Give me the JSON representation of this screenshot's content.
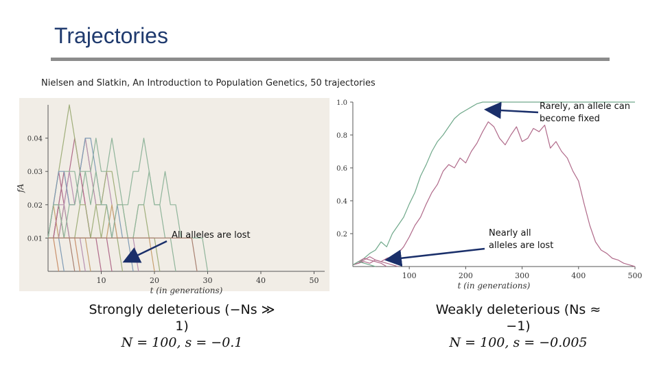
{
  "slide": {
    "title": "Trajectories",
    "citation": "Nielsen and Slatkin, An Introduction to Population Genetics, 50 trajectories"
  },
  "annotations": {
    "left_lost": "All alleles are lost",
    "right_fixed": "Rarely, an allele can become fixed",
    "right_lost": "Nearly all alleles are lost"
  },
  "captions": {
    "left_line1": "Strongly deleterious (−Ns ≫ 1)",
    "left_line2": "N = 100, s = −0.1",
    "right_line1": "Weakly deleterious (Ns ≈ −1)",
    "right_line2": "N = 100, s = −0.005"
  },
  "colors": {
    "title": "#1f3a6e",
    "rule": "#8c8c8c",
    "paper": "#f1ede6",
    "trajectory_pink": "#b06a8a",
    "trajectory_green": "#6fa88a",
    "arrow": "#1a2f6a"
  },
  "chart_data": [
    {
      "type": "line",
      "title": "",
      "xlabel": "t (in generations)",
      "ylabel": "fA",
      "xlim": [
        0,
        52
      ],
      "ylim": [
        0,
        0.05
      ],
      "xticks": [
        10,
        20,
        30,
        40,
        50
      ],
      "yticks": [
        0.01,
        0.02,
        0.03,
        0.04
      ],
      "xtick_labels": [
        "10",
        "20",
        "30",
        "40",
        "50"
      ],
      "ytick_labels": [
        "0.01",
        "0.02",
        "0.03",
        "0.04"
      ],
      "series": [
        {
          "x": [
            0,
            1,
            2,
            3,
            4,
            5,
            6,
            7,
            8,
            9,
            10
          ],
          "y": [
            0.01,
            0.02,
            0.03,
            0.02,
            0.03,
            0.04,
            0.03,
            0.02,
            0.01,
            0.01,
            0
          ]
        },
        {
          "x": [
            0,
            1,
            2,
            3,
            4,
            5,
            6
          ],
          "y": [
            0.01,
            0.01,
            0.02,
            0.01,
            0.01,
            0.01,
            0
          ]
        },
        {
          "x": [
            0,
            1,
            2,
            3,
            4,
            5,
            6,
            7,
            8,
            9,
            10,
            11,
            12,
            13,
            14
          ],
          "y": [
            0.01,
            0.02,
            0.03,
            0.04,
            0.05,
            0.04,
            0.03,
            0.04,
            0.03,
            0.02,
            0.01,
            0.02,
            0.01,
            0.01,
            0
          ]
        },
        {
          "x": [
            0,
            1,
            2,
            3
          ],
          "y": [
            0.01,
            0.01,
            0.01,
            0
          ]
        },
        {
          "x": [
            0,
            1,
            2,
            3,
            4,
            5,
            6,
            7,
            8,
            9,
            10,
            11,
            12,
            13,
            14,
            15,
            16,
            17
          ],
          "y": [
            0.01,
            0.01,
            0.02,
            0.02,
            0.03,
            0.02,
            0.03,
            0.04,
            0.03,
            0.02,
            0.02,
            0.03,
            0.02,
            0.01,
            0.01,
            0.01,
            0.01,
            0
          ]
        },
        {
          "x": [
            0,
            1,
            2,
            3,
            4,
            5,
            6,
            7,
            8
          ],
          "y": [
            0.01,
            0.02,
            0.01,
            0.02,
            0.01,
            0.01,
            0.01,
            0.01,
            0
          ]
        },
        {
          "x": [
            0,
            1,
            2,
            3,
            4,
            5,
            6,
            7,
            8,
            9,
            10,
            11,
            12,
            13,
            14,
            15,
            16,
            17,
            18,
            19,
            20,
            21,
            22,
            23,
            24
          ],
          "y": [
            0.01,
            0.02,
            0.02,
            0.03,
            0.03,
            0.03,
            0.02,
            0.03,
            0.03,
            0.04,
            0.03,
            0.03,
            0.04,
            0.03,
            0.02,
            0.02,
            0.03,
            0.03,
            0.04,
            0.03,
            0.02,
            0.02,
            0.01,
            0.01,
            0
          ]
        },
        {
          "x": [
            0,
            1,
            2,
            3,
            4,
            5
          ],
          "y": [
            0.01,
            0.01,
            0.02,
            0.01,
            0.01,
            0
          ]
        },
        {
          "x": [
            0,
            1,
            2,
            3,
            4,
            5,
            6,
            7,
            8,
            9,
            10,
            11,
            12
          ],
          "y": [
            0.01,
            0.01,
            0.02,
            0.03,
            0.02,
            0.02,
            0.03,
            0.02,
            0.01,
            0.01,
            0.01,
            0.01,
            0
          ]
        },
        {
          "x": [
            0,
            1,
            2
          ],
          "y": [
            0.01,
            0.01,
            0
          ]
        },
        {
          "x": [
            0,
            1,
            2,
            3,
            4,
            5,
            6,
            7,
            8,
            9,
            10,
            11,
            12,
            13,
            14,
            15,
            16,
            17,
            18,
            19,
            20,
            21
          ],
          "y": [
            0.01,
            0.01,
            0.01,
            0.02,
            0.01,
            0.01,
            0.02,
            0.02,
            0.01,
            0.02,
            0.02,
            0.03,
            0.03,
            0.02,
            0.02,
            0.01,
            0.01,
            0.02,
            0.02,
            0.01,
            0.01,
            0
          ]
        },
        {
          "x": [
            0,
            1,
            2,
            3,
            4,
            5,
            6,
            7,
            8,
            9,
            10,
            11,
            12,
            13,
            14,
            15,
            16
          ],
          "y": [
            0.01,
            0.02,
            0.03,
            0.03,
            0.02,
            0.02,
            0.03,
            0.04,
            0.04,
            0.03,
            0.02,
            0.02,
            0.01,
            0.02,
            0.01,
            0.01,
            0
          ]
        },
        {
          "x": [
            0,
            1,
            2,
            3,
            4,
            5,
            6,
            7
          ],
          "y": [
            0.01,
            0.01,
            0.01,
            0.02,
            0.01,
            0.01,
            0.01,
            0
          ]
        },
        {
          "x": [
            0,
            1,
            2,
            3,
            4,
            5,
            6,
            7,
            8,
            9,
            10,
            11,
            12,
            13,
            14,
            15,
            16,
            17,
            18,
            19,
            20
          ],
          "y": [
            0.01,
            0.01,
            0.01,
            0.01,
            0.01,
            0.01,
            0.01,
            0.01,
            0.01,
            0.01,
            0.01,
            0.01,
            0.02,
            0.01,
            0.01,
            0.01,
            0.01,
            0.01,
            0.01,
            0.01,
            0
          ]
        },
        {
          "x": [
            0,
            1,
            2,
            3,
            4,
            5,
            6,
            7,
            8,
            9,
            10,
            11,
            12,
            13,
            14,
            15,
            16,
            17,
            18,
            19,
            20,
            21,
            22,
            23,
            24,
            25,
            26,
            27,
            28,
            29,
            30
          ],
          "y": [
            0.01,
            0.02,
            0.02,
            0.01,
            0.02,
            0.02,
            0.03,
            0.03,
            0.02,
            0.03,
            0.02,
            0.02,
            0.01,
            0.02,
            0.02,
            0.01,
            0.01,
            0.02,
            0.02,
            0.03,
            0.02,
            0.02,
            0.03,
            0.02,
            0.02,
            0.01,
            0.01,
            0.01,
            0.01,
            0.01,
            0
          ]
        },
        {
          "x": [
            0,
            1,
            2,
            3,
            4,
            5,
            6,
            7,
            8,
            9,
            10,
            11,
            12,
            13,
            14,
            15,
            16,
            17,
            18,
            19,
            20,
            21,
            22,
            23,
            24,
            25,
            26,
            27,
            28
          ],
          "y": [
            0.01,
            0.01,
            0.01,
            0.01,
            0.01,
            0.01,
            0.01,
            0.01,
            0.01,
            0.01,
            0.01,
            0.01,
            0.01,
            0.01,
            0.01,
            0.01,
            0.01,
            0.01,
            0.01,
            0.01,
            0.01,
            0.01,
            0.01,
            0.01,
            0.01,
            0.01,
            0.01,
            0.01,
            0
          ]
        }
      ]
    },
    {
      "type": "line",
      "title": "",
      "xlabel": "t (in generations)",
      "ylabel": "",
      "xlim": [
        0,
        500
      ],
      "ylim": [
        0,
        1.0
      ],
      "xticks": [
        100,
        200,
        300,
        400,
        500
      ],
      "yticks": [
        0.2,
        0.4,
        0.6,
        0.8,
        1.0
      ],
      "xtick_labels": [
        "100",
        "200",
        "300",
        "400",
        "500"
      ],
      "ytick_labels": [
        "0.2",
        "0.4",
        "0.6",
        "0.8",
        "1.0"
      ],
      "series": [
        {
          "color": "green",
          "x": [
            0,
            10,
            20,
            30,
            40,
            50,
            60,
            70,
            80,
            90,
            100,
            110,
            120,
            130,
            140,
            150,
            160,
            170,
            180,
            190,
            200,
            210,
            220,
            230,
            240,
            250,
            260,
            270,
            280,
            290,
            300,
            310,
            320,
            330,
            340,
            350,
            360,
            370,
            380,
            390,
            400,
            410,
            420,
            430,
            440,
            450,
            460,
            470,
            480,
            490,
            500
          ],
          "y": [
            0.01,
            0.02,
            0.05,
            0.08,
            0.1,
            0.15,
            0.12,
            0.2,
            0.25,
            0.3,
            0.38,
            0.45,
            0.55,
            0.62,
            0.7,
            0.76,
            0.8,
            0.85,
            0.9,
            0.93,
            0.95,
            0.97,
            0.99,
            1,
            1,
            1,
            1,
            1,
            1,
            1,
            1,
            1,
            1,
            1,
            1,
            1,
            1,
            1,
            1,
            1,
            1,
            1,
            1,
            1,
            1,
            1,
            1,
            1,
            1,
            1,
            1
          ]
        },
        {
          "color": "pink",
          "x": [
            0,
            10,
            20,
            30,
            40,
            50,
            60,
            70,
            80,
            90,
            100,
            110,
            120,
            130,
            140,
            150,
            160,
            170,
            180,
            190,
            200,
            210,
            220,
            230,
            240,
            250,
            260,
            270,
            280,
            290,
            300,
            310,
            320,
            330,
            340,
            350,
            360,
            370,
            380,
            390,
            400,
            410,
            420,
            430,
            440,
            450,
            460,
            470,
            480,
            490,
            500
          ],
          "y": [
            0.01,
            0.02,
            0.03,
            0.02,
            0.04,
            0.03,
            0.05,
            0.06,
            0.08,
            0.12,
            0.18,
            0.25,
            0.3,
            0.38,
            0.45,
            0.5,
            0.58,
            0.62,
            0.6,
            0.66,
            0.63,
            0.7,
            0.75,
            0.82,
            0.88,
            0.85,
            0.78,
            0.74,
            0.8,
            0.85,
            0.76,
            0.78,
            0.84,
            0.82,
            0.86,
            0.72,
            0.76,
            0.7,
            0.66,
            0.58,
            0.52,
            0.38,
            0.25,
            0.15,
            0.1,
            0.08,
            0.05,
            0.04,
            0.02,
            0.01,
            0
          ]
        },
        {
          "color": "pink",
          "x": [
            0,
            10,
            20,
            30,
            40,
            50,
            60
          ],
          "y": [
            0.01,
            0.03,
            0.05,
            0.04,
            0.03,
            0.02,
            0
          ]
        },
        {
          "color": "pink",
          "x": [
            0,
            10,
            20,
            30,
            40,
            50,
            60,
            70,
            80
          ],
          "y": [
            0.01,
            0.02,
            0.04,
            0.06,
            0.04,
            0.03,
            0.02,
            0.01,
            0
          ]
        },
        {
          "color": "green",
          "x": [
            0,
            10,
            20,
            30,
            40
          ],
          "y": [
            0.01,
            0.03,
            0.02,
            0.01,
            0
          ]
        }
      ]
    }
  ]
}
